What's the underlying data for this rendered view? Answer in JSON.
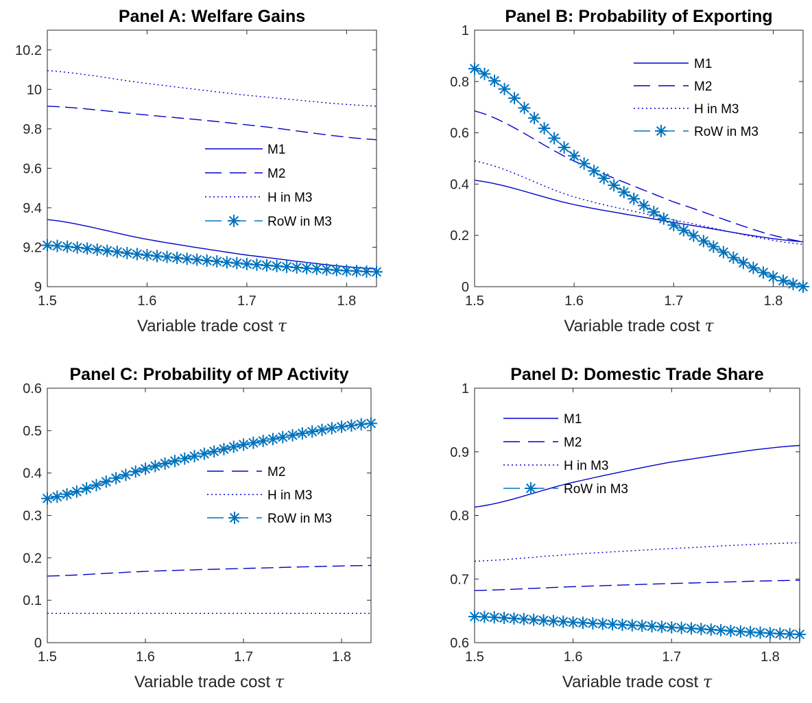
{
  "chart_data": [
    {
      "panel": "A",
      "type": "line",
      "title": "Panel A: Welfare Gains",
      "xlabel": "Variable trade cost",
      "xlabel_symbol": "τ",
      "xlim": [
        1.5,
        1.83
      ],
      "ylim": [
        9,
        10.3
      ],
      "xticks": [
        "1.5",
        "1.6",
        "1.7",
        "1.8"
      ],
      "yticks": [
        "9",
        "9.2",
        "9.4",
        "9.6",
        "9.8",
        "10",
        "10.2"
      ],
      "legend": "center-right",
      "series": [
        {
          "name": "M1",
          "style": "solid",
          "x": [
            1.5,
            1.6,
            1.7,
            1.83
          ],
          "values": [
            9.34,
            9.24,
            9.16,
            9.09
          ]
        },
        {
          "name": "M2",
          "style": "dashed",
          "x": [
            1.5,
            1.6,
            1.7,
            1.83
          ],
          "values": [
            9.915,
            9.87,
            9.82,
            9.745
          ]
        },
        {
          "name": "H in M3",
          "style": "dotted",
          "x": [
            1.5,
            1.6,
            1.7,
            1.83
          ],
          "values": [
            10.095,
            10.03,
            9.97,
            9.915
          ]
        },
        {
          "name": "RoW in M3",
          "style": "dashed-star",
          "x": [
            1.5,
            1.6,
            1.7,
            1.83
          ],
          "values": [
            9.21,
            9.16,
            9.115,
            9.075
          ]
        }
      ]
    },
    {
      "panel": "B",
      "type": "line",
      "title": "Panel B: Probability of Exporting",
      "xlabel": "Variable trade cost",
      "xlabel_symbol": "τ",
      "xlim": [
        1.5,
        1.83
      ],
      "ylim": [
        0,
        1
      ],
      "xticks": [
        "1.5",
        "1.6",
        "1.7",
        "1.8"
      ],
      "yticks": [
        "0",
        "0.2",
        "0.4",
        "0.6",
        "0.8",
        "1"
      ],
      "legend": "top-right",
      "series": [
        {
          "name": "M1",
          "style": "solid",
          "x": [
            1.5,
            1.6,
            1.7,
            1.83
          ],
          "values": [
            0.415,
            0.32,
            0.25,
            0.175
          ]
        },
        {
          "name": "M2",
          "style": "dashed",
          "x": [
            1.5,
            1.6,
            1.7,
            1.83
          ],
          "values": [
            0.685,
            0.49,
            0.33,
            0.175
          ]
        },
        {
          "name": "H in M3",
          "style": "dotted",
          "x": [
            1.5,
            1.6,
            1.7,
            1.83
          ],
          "values": [
            0.49,
            0.35,
            0.26,
            0.165
          ]
        },
        {
          "name": "RoW in M3",
          "style": "dashed-star",
          "x": [
            1.5,
            1.6,
            1.7,
            1.83
          ],
          "values": [
            0.85,
            0.51,
            0.24,
            0.0
          ]
        }
      ]
    },
    {
      "panel": "C",
      "type": "line",
      "title": "Panel C: Probability of MP Activity",
      "xlabel": "Variable trade cost",
      "xlabel_symbol": "τ",
      "xlim": [
        1.5,
        1.83
      ],
      "ylim": [
        0,
        0.6
      ],
      "xticks": [
        "1.5",
        "1.6",
        "1.7",
        "1.8"
      ],
      "yticks": [
        "0",
        "0.1",
        "0.2",
        "0.3",
        "0.4",
        "0.5",
        "0.6"
      ],
      "legend": "center-right",
      "series": [
        {
          "name": "M2",
          "style": "dashed",
          "x": [
            1.5,
            1.6,
            1.7,
            1.83
          ],
          "values": [
            0.157,
            0.168,
            0.175,
            0.182
          ]
        },
        {
          "name": "H in M3",
          "style": "dotted",
          "x": [
            1.5,
            1.6,
            1.7,
            1.83
          ],
          "values": [
            0.069,
            0.069,
            0.069,
            0.069
          ]
        },
        {
          "name": "RoW in M3",
          "style": "dashed-star",
          "x": [
            1.5,
            1.6,
            1.7,
            1.83
          ],
          "values": [
            0.34,
            0.41,
            0.467,
            0.517
          ]
        }
      ]
    },
    {
      "panel": "D",
      "type": "line",
      "title": "Panel D: Domestic Trade Share",
      "xlabel": "Variable trade cost",
      "xlabel_symbol": "τ",
      "xlim": [
        1.5,
        1.83
      ],
      "ylim": [
        0.6,
        1
      ],
      "xticks": [
        "1.5",
        "1.6",
        "1.7",
        "1.8"
      ],
      "yticks": [
        "0.6",
        "0.7",
        "0.8",
        "0.9",
        "1"
      ],
      "legend": "top-left",
      "series": [
        {
          "name": "M1",
          "style": "solid",
          "x": [
            1.5,
            1.6,
            1.7,
            1.83
          ],
          "values": [
            0.813,
            0.852,
            0.884,
            0.91
          ]
        },
        {
          "name": "M2",
          "style": "dashed",
          "x": [
            1.5,
            1.6,
            1.7,
            1.83
          ],
          "values": [
            0.682,
            0.688,
            0.693,
            0.698
          ]
        },
        {
          "name": "H in M3",
          "style": "dotted",
          "x": [
            1.5,
            1.6,
            1.7,
            1.83
          ],
          "values": [
            0.728,
            0.739,
            0.748,
            0.757
          ]
        },
        {
          "name": "RoW in M3",
          "style": "dashed-star",
          "x": [
            1.5,
            1.6,
            1.7,
            1.83
          ],
          "values": [
            0.641,
            0.632,
            0.624,
            0.613
          ]
        }
      ]
    }
  ],
  "colors": {
    "line": "#0000cc",
    "marker": "#0072bd",
    "axis": "#262626"
  }
}
